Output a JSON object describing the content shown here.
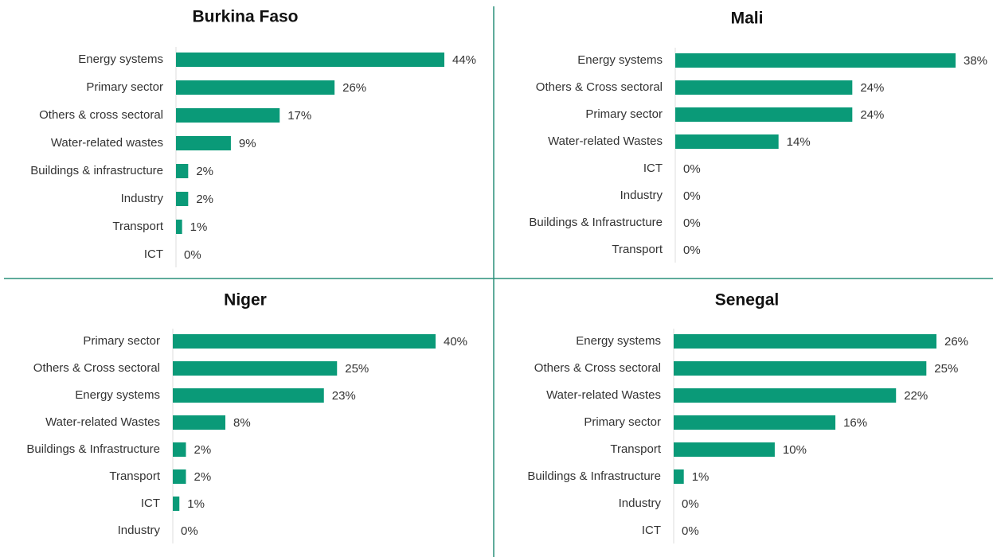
{
  "chart_data": [
    {
      "type": "barh",
      "title": "Burkina Faso",
      "color": "#0a9a78",
      "categories": [
        "Energy systems",
        "Primary sector",
        "Others & cross sectoral",
        "Water-related wastes",
        "Buildings & infrastructure",
        "Industry",
        "Transport",
        "ICT"
      ],
      "values": [
        44,
        26,
        17,
        9,
        2,
        2,
        1,
        0
      ],
      "value_labels": [
        "44%",
        "26%",
        "17%",
        "9%",
        "2%",
        "2%",
        "1%",
        "0%"
      ]
    },
    {
      "type": "barh",
      "title": "Mali",
      "color": "#0a9a78",
      "categories": [
        "Energy systems",
        "Others & Cross sectoral",
        "Primary sector",
        "Water-related Wastes",
        "ICT",
        "Industry",
        "Buildings & Infrastructure",
        "Transport"
      ],
      "values": [
        38,
        24,
        24,
        14,
        0,
        0,
        0,
        0
      ],
      "value_labels": [
        "38%",
        "24%",
        "24%",
        "14%",
        "0%",
        "0%",
        "0%",
        "0%"
      ]
    },
    {
      "type": "barh",
      "title": "Niger",
      "color": "#0a9a78",
      "categories": [
        "Primary sector",
        "Others & Cross sectoral",
        "Energy systems",
        "Water-related Wastes",
        "Buildings & Infrastructure",
        "Transport",
        "ICT",
        "Industry"
      ],
      "values": [
        40,
        25,
        23,
        8,
        2,
        2,
        1,
        0
      ],
      "value_labels": [
        "40%",
        "25%",
        "23%",
        "8%",
        "2%",
        "2%",
        "1%",
        "0%"
      ]
    },
    {
      "type": "barh",
      "title": "Senegal",
      "color": "#0a9a78",
      "categories": [
        "Energy systems",
        "Others & Cross sectoral",
        "Water-related Wastes",
        "Primary sector",
        "Transport",
        "Buildings & Infrastructure",
        "Industry",
        "ICT"
      ],
      "values": [
        26,
        25,
        22,
        16,
        10,
        1,
        0,
        0
      ],
      "value_labels": [
        "26%",
        "25%",
        "22%",
        "16%",
        "10%",
        "1%",
        "0%",
        "0%"
      ]
    }
  ]
}
